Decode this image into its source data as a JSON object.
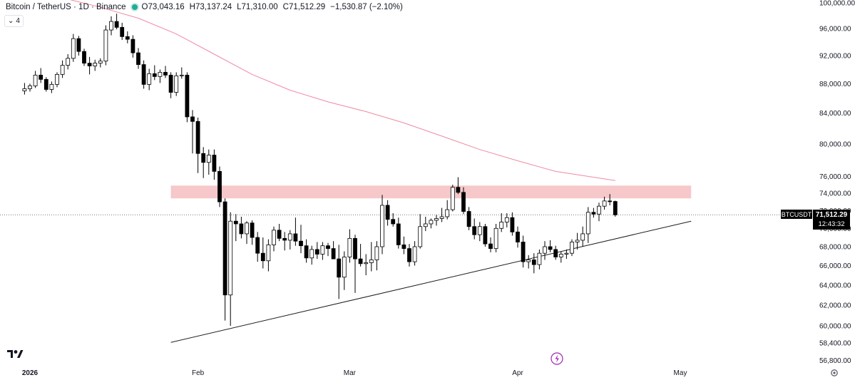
{
  "header": {
    "symbol": "Bitcoin / TetherUS · 1D · Binance",
    "open": "O73,043.16",
    "high": "H73,137.24",
    "low": "L71,310.00",
    "close": "C71,512.29",
    "change": "−1,530.87 (−2.10%)",
    "indicator_count": "4",
    "status_color": "#22ab94"
  },
  "price_tag": {
    "ticker": "BTCUSDT",
    "price": "71,512.29",
    "countdown": "12:43:32"
  },
  "colors": {
    "up_candle": "#ffffff",
    "down_candle": "#000000",
    "wick": "#000000",
    "ma_line": "#f08aa3",
    "resistance_zone": "#f4b8bb",
    "trendline": "#1e1e1e"
  },
  "chart_data": {
    "type": "candlestick",
    "title": "Bitcoin / TetherUS · 1D · Binance",
    "y_axis": {
      "ticks": [
        "56,800.00",
        "58,400.00",
        "60,000.00",
        "62,000.00",
        "64,000.00",
        "66,000.00",
        "68,000.00",
        "70,000.00",
        "72,000.00",
        "74,000.00",
        "76,000.00",
        "80,000.00",
        "84,000.00",
        "88,000.00",
        "92,000.00",
        "96,000.00",
        "100,000.00"
      ],
      "tick_values": [
        56800,
        58400,
        60000,
        62000,
        64000,
        66000,
        68000,
        70000,
        72000,
        74000,
        76000,
        80000,
        84000,
        88000,
        92000,
        96000,
        100000
      ],
      "scale": "log"
    },
    "x_axis": {
      "ticks": [
        "2026",
        "Feb",
        "Mar",
        "Apr",
        "May"
      ],
      "tick_dates": [
        "2026-01-01",
        "2026-02-01",
        "2026-03-01",
        "2026-04-01",
        "2026-05-01"
      ]
    },
    "candles": [
      {
        "date": "2025-12-31",
        "o": 87000,
        "h": 88100,
        "l": 86500,
        "c": 87300
      },
      {
        "date": "2026-01-01",
        "o": 87300,
        "h": 88000,
        "l": 86900,
        "c": 87700
      },
      {
        "date": "2026-01-02",
        "o": 87700,
        "h": 89800,
        "l": 87400,
        "c": 89200
      },
      {
        "date": "2026-01-03",
        "o": 89200,
        "h": 90200,
        "l": 88100,
        "c": 88600
      },
      {
        "date": "2026-01-04",
        "o": 88600,
        "h": 88900,
        "l": 86900,
        "c": 87200
      },
      {
        "date": "2026-01-05",
        "o": 87200,
        "h": 88300,
        "l": 86700,
        "c": 87900
      },
      {
        "date": "2026-01-06",
        "o": 87900,
        "h": 89600,
        "l": 87500,
        "c": 89300
      },
      {
        "date": "2026-01-07",
        "o": 89300,
        "h": 91300,
        "l": 88800,
        "c": 90600
      },
      {
        "date": "2026-01-08",
        "o": 90600,
        "h": 92200,
        "l": 90000,
        "c": 91600
      },
      {
        "date": "2026-01-09",
        "o": 91600,
        "h": 95200,
        "l": 91100,
        "c": 94500
      },
      {
        "date": "2026-01-10",
        "o": 94500,
        "h": 94900,
        "l": 92000,
        "c": 92600
      },
      {
        "date": "2026-01-11",
        "o": 92600,
        "h": 93000,
        "l": 90500,
        "c": 90900
      },
      {
        "date": "2026-01-12",
        "o": 90900,
        "h": 91800,
        "l": 89300,
        "c": 90500
      },
      {
        "date": "2026-01-13",
        "o": 90500,
        "h": 91400,
        "l": 89800,
        "c": 90900
      },
      {
        "date": "2026-01-14",
        "o": 90900,
        "h": 91600,
        "l": 90300,
        "c": 91200
      },
      {
        "date": "2026-01-15",
        "o": 91200,
        "h": 96500,
        "l": 90600,
        "c": 95800
      },
      {
        "date": "2026-01-16",
        "o": 95800,
        "h": 97900,
        "l": 95000,
        "c": 97100
      },
      {
        "date": "2026-01-17",
        "o": 97100,
        "h": 98300,
        "l": 95900,
        "c": 96200
      },
      {
        "date": "2026-01-18",
        "o": 96200,
        "h": 96900,
        "l": 94300,
        "c": 94800
      },
      {
        "date": "2026-01-19",
        "o": 94800,
        "h": 95600,
        "l": 93800,
        "c": 94400
      },
      {
        "date": "2026-01-20",
        "o": 94400,
        "h": 95000,
        "l": 91700,
        "c": 92400
      },
      {
        "date": "2026-01-21",
        "o": 92400,
        "h": 93100,
        "l": 90100,
        "c": 90700
      },
      {
        "date": "2026-01-22",
        "o": 90700,
        "h": 91300,
        "l": 87300,
        "c": 87900
      },
      {
        "date": "2026-01-23",
        "o": 87900,
        "h": 90100,
        "l": 87100,
        "c": 89400
      },
      {
        "date": "2026-01-24",
        "o": 89400,
        "h": 90600,
        "l": 88500,
        "c": 89000
      },
      {
        "date": "2026-01-25",
        "o": 89000,
        "h": 90000,
        "l": 88100,
        "c": 89600
      },
      {
        "date": "2026-01-26",
        "o": 89600,
        "h": 90500,
        "l": 88800,
        "c": 89200
      },
      {
        "date": "2026-01-27",
        "o": 89200,
        "h": 89600,
        "l": 86000,
        "c": 86800
      },
      {
        "date": "2026-01-28",
        "o": 86800,
        "h": 89600,
        "l": 86300,
        "c": 89100
      },
      {
        "date": "2026-01-29",
        "o": 89100,
        "h": 90300,
        "l": 88700,
        "c": 89200
      },
      {
        "date": "2026-01-30",
        "o": 89200,
        "h": 89600,
        "l": 82800,
        "c": 83500
      },
      {
        "date": "2026-01-31",
        "o": 83500,
        "h": 84400,
        "l": 78800,
        "c": 82900
      },
      {
        "date": "2026-02-01",
        "o": 82900,
        "h": 83400,
        "l": 76400,
        "c": 78800
      },
      {
        "date": "2026-02-02",
        "o": 78800,
        "h": 79600,
        "l": 75800,
        "c": 77700
      },
      {
        "date": "2026-02-03",
        "o": 77700,
        "h": 79300,
        "l": 76200,
        "c": 78600
      },
      {
        "date": "2026-02-04",
        "o": 78600,
        "h": 79300,
        "l": 75600,
        "c": 76600
      },
      {
        "date": "2026-02-05",
        "o": 76600,
        "h": 77200,
        "l": 72400,
        "c": 73000
      },
      {
        "date": "2026-02-06",
        "o": 73000,
        "h": 73400,
        "l": 60500,
        "c": 63000
      },
      {
        "date": "2026-02-07",
        "o": 63000,
        "h": 71800,
        "l": 60000,
        "c": 70800
      },
      {
        "date": "2026-02-08",
        "o": 70800,
        "h": 71600,
        "l": 68600,
        "c": 70500
      },
      {
        "date": "2026-02-09",
        "o": 70500,
        "h": 71300,
        "l": 68900,
        "c": 69400
      },
      {
        "date": "2026-02-10",
        "o": 69400,
        "h": 70800,
        "l": 68300,
        "c": 70600
      },
      {
        "date": "2026-02-11",
        "o": 70600,
        "h": 70900,
        "l": 68200,
        "c": 69000
      },
      {
        "date": "2026-02-12",
        "o": 69000,
        "h": 69600,
        "l": 66400,
        "c": 67300
      },
      {
        "date": "2026-02-13",
        "o": 67300,
        "h": 69000,
        "l": 65700,
        "c": 66500
      },
      {
        "date": "2026-02-14",
        "o": 66500,
        "h": 68800,
        "l": 65400,
        "c": 68200
      },
      {
        "date": "2026-02-15",
        "o": 68200,
        "h": 70200,
        "l": 67500,
        "c": 69800
      },
      {
        "date": "2026-02-16",
        "o": 69800,
        "h": 70500,
        "l": 68600,
        "c": 68900
      },
      {
        "date": "2026-02-17",
        "o": 68900,
        "h": 69600,
        "l": 67600,
        "c": 68700
      },
      {
        "date": "2026-02-18",
        "o": 68700,
        "h": 69800,
        "l": 67700,
        "c": 69400
      },
      {
        "date": "2026-02-19",
        "o": 69400,
        "h": 71200,
        "l": 68100,
        "c": 68600
      },
      {
        "date": "2026-02-20",
        "o": 68600,
        "h": 70400,
        "l": 67300,
        "c": 68100
      },
      {
        "date": "2026-02-21",
        "o": 68100,
        "h": 68800,
        "l": 66300,
        "c": 66800
      },
      {
        "date": "2026-02-22",
        "o": 66800,
        "h": 68100,
        "l": 66100,
        "c": 67700
      },
      {
        "date": "2026-02-23",
        "o": 67700,
        "h": 68500,
        "l": 66700,
        "c": 67200
      },
      {
        "date": "2026-02-24",
        "o": 67200,
        "h": 68500,
        "l": 66600,
        "c": 68100
      },
      {
        "date": "2026-02-25",
        "o": 68100,
        "h": 68400,
        "l": 67000,
        "c": 67800
      },
      {
        "date": "2026-02-26",
        "o": 67800,
        "h": 68600,
        "l": 66700,
        "c": 66700
      },
      {
        "date": "2026-02-27",
        "o": 66700,
        "h": 68200,
        "l": 62600,
        "c": 64800
      },
      {
        "date": "2026-02-28",
        "o": 64800,
        "h": 67500,
        "l": 63500,
        "c": 66900
      },
      {
        "date": "2026-03-01",
        "o": 66900,
        "h": 69900,
        "l": 66300,
        "c": 68900
      },
      {
        "date": "2026-03-02",
        "o": 68900,
        "h": 69300,
        "l": 63200,
        "c": 66700
      },
      {
        "date": "2026-03-03",
        "o": 66700,
        "h": 68300,
        "l": 65900,
        "c": 66200
      },
      {
        "date": "2026-03-04",
        "o": 66200,
        "h": 67200,
        "l": 65000,
        "c": 66300
      },
      {
        "date": "2026-03-05",
        "o": 66300,
        "h": 68500,
        "l": 65400,
        "c": 66600
      },
      {
        "date": "2026-03-06",
        "o": 66600,
        "h": 68600,
        "l": 65500,
        "c": 68000
      },
      {
        "date": "2026-03-07",
        "o": 68000,
        "h": 73800,
        "l": 67200,
        "c": 72600
      },
      {
        "date": "2026-03-08",
        "o": 72600,
        "h": 73200,
        "l": 70300,
        "c": 71000
      },
      {
        "date": "2026-03-09",
        "o": 71000,
        "h": 71700,
        "l": 70200,
        "c": 70500
      },
      {
        "date": "2026-03-10",
        "o": 70500,
        "h": 71200,
        "l": 67800,
        "c": 68200
      },
      {
        "date": "2026-03-11",
        "o": 68200,
        "h": 69100,
        "l": 67200,
        "c": 67800
      },
      {
        "date": "2026-03-12",
        "o": 67800,
        "h": 68300,
        "l": 65900,
        "c": 66400
      },
      {
        "date": "2026-03-13",
        "o": 66400,
        "h": 68600,
        "l": 66000,
        "c": 68000
      },
      {
        "date": "2026-03-14",
        "o": 68000,
        "h": 71600,
        "l": 67800,
        "c": 70200
      },
      {
        "date": "2026-03-15",
        "o": 70200,
        "h": 71300,
        "l": 69700,
        "c": 70500
      },
      {
        "date": "2026-03-16",
        "o": 70500,
        "h": 71100,
        "l": 70000,
        "c": 70900
      },
      {
        "date": "2026-03-17",
        "o": 70900,
        "h": 71500,
        "l": 70300,
        "c": 71100
      },
      {
        "date": "2026-03-18",
        "o": 71100,
        "h": 72300,
        "l": 70700,
        "c": 71300
      },
      {
        "date": "2026-03-19",
        "o": 71300,
        "h": 73200,
        "l": 71000,
        "c": 72100
      },
      {
        "date": "2026-03-20",
        "o": 72100,
        "h": 75000,
        "l": 71900,
        "c": 74700
      },
      {
        "date": "2026-03-21",
        "o": 74700,
        "h": 75900,
        "l": 73900,
        "c": 74100
      },
      {
        "date": "2026-03-22",
        "o": 74100,
        "h": 74700,
        "l": 71600,
        "c": 71900
      },
      {
        "date": "2026-03-23",
        "o": 71900,
        "h": 72400,
        "l": 69800,
        "c": 70200
      },
      {
        "date": "2026-03-24",
        "o": 70200,
        "h": 71100,
        "l": 68800,
        "c": 69300
      },
      {
        "date": "2026-03-25",
        "o": 69300,
        "h": 70700,
        "l": 68600,
        "c": 70200
      },
      {
        "date": "2026-03-26",
        "o": 70200,
        "h": 70500,
        "l": 68000,
        "c": 68300
      },
      {
        "date": "2026-03-27",
        "o": 68300,
        "h": 69000,
        "l": 67400,
        "c": 67800
      },
      {
        "date": "2026-03-28",
        "o": 67800,
        "h": 70500,
        "l": 67400,
        "c": 70000
      },
      {
        "date": "2026-03-29",
        "o": 70000,
        "h": 71700,
        "l": 69600,
        "c": 70700
      },
      {
        "date": "2026-03-30",
        "o": 70700,
        "h": 71700,
        "l": 70100,
        "c": 71200
      },
      {
        "date": "2026-03-31",
        "o": 71200,
        "h": 71800,
        "l": 69200,
        "c": 69600
      },
      {
        "date": "2026-04-01",
        "o": 69600,
        "h": 70200,
        "l": 67900,
        "c": 68500
      },
      {
        "date": "2026-04-02",
        "o": 68500,
        "h": 69200,
        "l": 65800,
        "c": 66400
      },
      {
        "date": "2026-04-03",
        "o": 66400,
        "h": 67100,
        "l": 65700,
        "c": 66600
      },
      {
        "date": "2026-04-04",
        "o": 66600,
        "h": 67300,
        "l": 65200,
        "c": 66100
      },
      {
        "date": "2026-04-05",
        "o": 66100,
        "h": 67700,
        "l": 65600,
        "c": 67300
      },
      {
        "date": "2026-04-06",
        "o": 67300,
        "h": 68600,
        "l": 66600,
        "c": 68000
      },
      {
        "date": "2026-04-07",
        "o": 68000,
        "h": 68700,
        "l": 67400,
        "c": 67700
      },
      {
        "date": "2026-04-08",
        "o": 67700,
        "h": 68100,
        "l": 66600,
        "c": 66900
      },
      {
        "date": "2026-04-09",
        "o": 66900,
        "h": 67500,
        "l": 66300,
        "c": 67200
      },
      {
        "date": "2026-04-10",
        "o": 67200,
        "h": 67700,
        "l": 66700,
        "c": 67300
      },
      {
        "date": "2026-04-11",
        "o": 67300,
        "h": 68800,
        "l": 67000,
        "c": 68500
      },
      {
        "date": "2026-04-12",
        "o": 68500,
        "h": 69500,
        "l": 67700,
        "c": 68700
      },
      {
        "date": "2026-04-13",
        "o": 68700,
        "h": 70200,
        "l": 68000,
        "c": 69400
      },
      {
        "date": "2026-04-14",
        "o": 69400,
        "h": 72400,
        "l": 68400,
        "c": 71800
      },
      {
        "date": "2026-04-15",
        "o": 71800,
        "h": 72300,
        "l": 71200,
        "c": 71600
      },
      {
        "date": "2026-04-16",
        "o": 71600,
        "h": 72900,
        "l": 70800,
        "c": 72500
      },
      {
        "date": "2026-04-17",
        "o": 72500,
        "h": 73600,
        "l": 72100,
        "c": 73100
      },
      {
        "date": "2026-04-18",
        "o": 73100,
        "h": 73900,
        "l": 72600,
        "c": 73043.16
      },
      {
        "date": "2026-04-19",
        "o": 73043.16,
        "h": 73137.24,
        "l": 71310.0,
        "c": 71512.29
      }
    ],
    "moving_average": [
      {
        "date": "2025-12-31",
        "v": 102300
      },
      {
        "date": "2026-01-07",
        "v": 100800
      },
      {
        "date": "2026-01-14",
        "v": 99300
      },
      {
        "date": "2026-01-21",
        "v": 97600
      },
      {
        "date": "2026-01-28",
        "v": 95200
      },
      {
        "date": "2026-02-04",
        "v": 92200
      },
      {
        "date": "2026-02-11",
        "v": 89300
      },
      {
        "date": "2026-02-18",
        "v": 87100
      },
      {
        "date": "2026-02-25",
        "v": 85500
      },
      {
        "date": "2026-03-04",
        "v": 84200
      },
      {
        "date": "2026-03-11",
        "v": 82700
      },
      {
        "date": "2026-03-18",
        "v": 81000
      },
      {
        "date": "2026-03-25",
        "v": 79300
      },
      {
        "date": "2026-04-01",
        "v": 77900
      },
      {
        "date": "2026-04-08",
        "v": 76600
      },
      {
        "date": "2026-04-19",
        "v": 75500
      }
    ],
    "resistance_zone": {
      "from": 73400,
      "to": 74900,
      "start": "2026-01-27",
      "end": "2026-05-03"
    },
    "trendline": {
      "start": {
        "date": "2026-01-27",
        "price": 58450
      },
      "end": {
        "date": "2026-05-03",
        "price": 70800
      }
    },
    "last_price_line": 71512.29
  }
}
